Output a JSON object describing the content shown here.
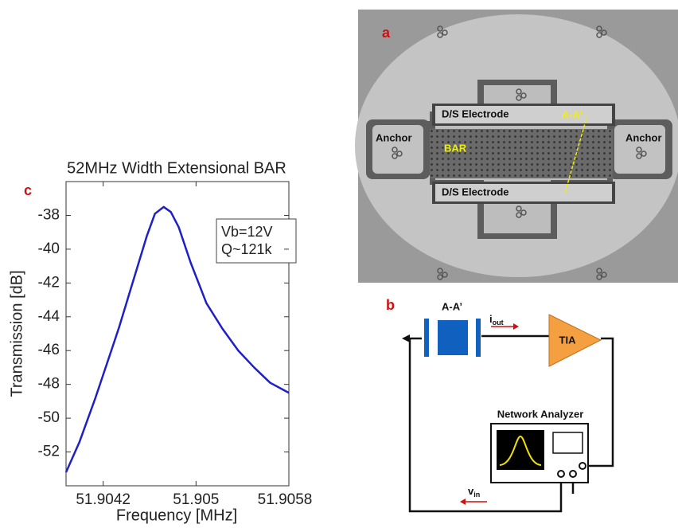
{
  "chart_data": {
    "type": "line",
    "title": "52MHz Width Extensional BAR",
    "panel_label": "c",
    "x_label": "Frequency [MHz]",
    "y_label": "Transmission [dB]",
    "xlim": [
      51.90388,
      51.9058
    ],
    "ylim": [
      -54,
      -36
    ],
    "xticks": [
      51.9042,
      51.905,
      51.9058
    ],
    "yticks": [
      -38,
      -40,
      -42,
      -44,
      -46,
      -48,
      -50,
      -52
    ],
    "annotations": [
      "Vb=12V",
      "Q~121k"
    ],
    "series": [
      {
        "color": "#1f1fc8",
        "x": [
          51.90388,
          51.903996,
          51.904133,
          51.90427,
          51.904338,
          51.904475,
          51.904577,
          51.904646,
          51.904721,
          51.904783,
          51.904851,
          51.904954,
          51.90509,
          51.905227,
          51.905364,
          51.905501,
          51.905638,
          51.9058
        ],
        "values": [
          -53.2,
          -51.4,
          -48.8,
          -46.0,
          -44.6,
          -41.5,
          -39.2,
          -37.9,
          -37.5,
          -37.8,
          -38.7,
          -40.8,
          -43.2,
          -44.7,
          -46.0,
          -47.0,
          -47.9,
          -48.5
        ]
      }
    ]
  },
  "micrograph": {
    "panel_label": "a",
    "electrode_top": "D/S Electrode",
    "electrode_bottom": "D/S Electrode",
    "anchor_left": "Anchor",
    "anchor_right": "Anchor",
    "bar": "BAR",
    "section": "A-A’"
  },
  "schematic": {
    "panel_label": "b",
    "section": "A-A’",
    "current": {
      "main": "i",
      "sub": "out"
    },
    "amplifier": "TIA",
    "analyzer": "Network Analyzer",
    "voltage": {
      "main": "v",
      "sub": "in"
    }
  }
}
